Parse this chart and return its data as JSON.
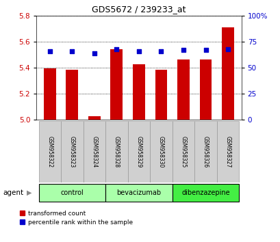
{
  "title": "GDS5672 / 239233_at",
  "samples": [
    "GSM958322",
    "GSM958323",
    "GSM958324",
    "GSM958328",
    "GSM958329",
    "GSM958330",
    "GSM958325",
    "GSM958326",
    "GSM958327"
  ],
  "bar_values": [
    5.395,
    5.385,
    5.03,
    5.54,
    5.425,
    5.385,
    5.465,
    5.465,
    5.71
  ],
  "percentile_values": [
    66,
    66,
    64,
    68,
    66,
    66,
    67,
    67,
    68
  ],
  "ylim_left": [
    5.0,
    5.8
  ],
  "ylim_right": [
    0,
    100
  ],
  "yticks_left": [
    5.0,
    5.2,
    5.4,
    5.6,
    5.8
  ],
  "yticks_right": [
    0,
    25,
    50,
    75,
    100
  ],
  "ytick_labels_right": [
    "0",
    "25",
    "50",
    "75",
    "100%"
  ],
  "bar_color": "#cc0000",
  "dot_color": "#0000cc",
  "groups": [
    {
      "label": "control",
      "start": 0,
      "end": 2,
      "color": "#aaffaa"
    },
    {
      "label": "bevacizumab",
      "start": 3,
      "end": 5,
      "color": "#aaffaa"
    },
    {
      "label": "dibenzazepine",
      "start": 6,
      "end": 8,
      "color": "#44ee44"
    }
  ],
  "legend_bar_label": "transformed count",
  "legend_dot_label": "percentile rank within the sample",
  "agent_label": "agent",
  "background_color": "#ffffff",
  "tick_label_color_left": "#cc0000",
  "tick_label_color_right": "#0000cc"
}
